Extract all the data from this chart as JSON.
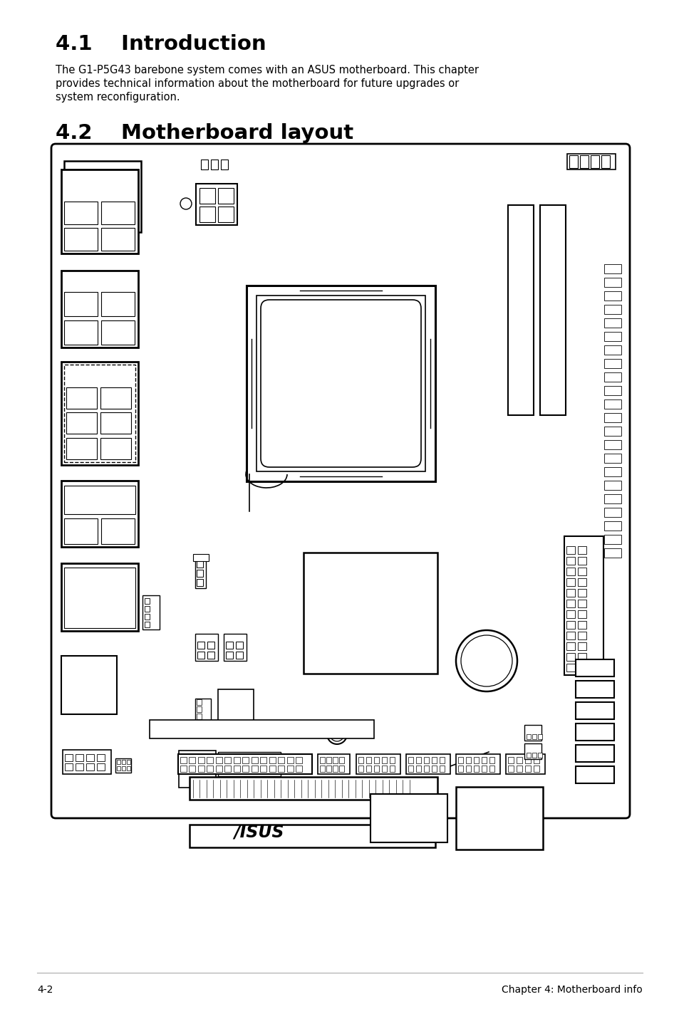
{
  "page_bg": "#ffffff",
  "title1": "4.1    Introduction",
  "body_text1": "The G1-P5G43 barebone system comes with an ASUS motherboard. This chapter",
  "body_text2": "provides technical information about the motherboard for future upgrades or",
  "body_text3": "system reconfiguration.",
  "title2": "4.2    Motherboard layout",
  "footer_left": "4-2",
  "footer_right": "Chapter 4: Motherboard info",
  "text_color": "#000000",
  "line_color": "#000000",
  "board_bg": "#ffffff"
}
